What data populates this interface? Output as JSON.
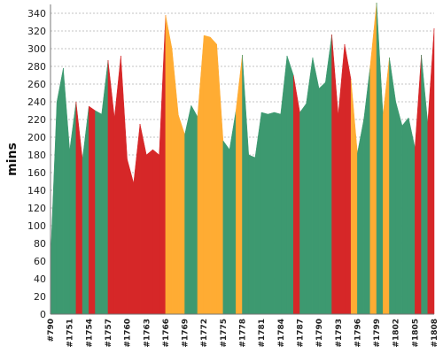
{
  "chart_data": {
    "type": "area",
    "title": "",
    "xlabel": "",
    "ylabel": "mins",
    "ylim": [
      0,
      350
    ],
    "yticks": [
      0,
      20,
      40,
      60,
      80,
      100,
      120,
      140,
      160,
      180,
      200,
      220,
      240,
      260,
      280,
      300,
      320,
      340
    ],
    "grid": true,
    "x_tick_labels": [
      "#790",
      "#1751",
      "#1754",
      "#1757",
      "#1760",
      "#1763",
      "#1766",
      "#1769",
      "#1772",
      "#1775",
      "#1778",
      "#1781",
      "#1784",
      "#1787",
      "#1790",
      "#1793",
      "#1796",
      "#1799",
      "#1802",
      "#1805",
      "#1808"
    ],
    "points": [
      {
        "v": 60,
        "c": "green"
      },
      {
        "v": 240,
        "c": "green"
      },
      {
        "v": 278,
        "c": "green"
      },
      {
        "v": 185,
        "c": "green"
      },
      {
        "v": 240,
        "c": "red"
      },
      {
        "v": 175,
        "c": "green"
      },
      {
        "v": 235,
        "c": "red"
      },
      {
        "v": 230,
        "c": "green"
      },
      {
        "v": 226,
        "c": "green"
      },
      {
        "v": 287,
        "c": "red"
      },
      {
        "v": 222,
        "c": "red"
      },
      {
        "v": 292,
        "c": "red"
      },
      {
        "v": 175,
        "c": "red"
      },
      {
        "v": 148,
        "c": "red"
      },
      {
        "v": 215,
        "c": "red"
      },
      {
        "v": 180,
        "c": "red"
      },
      {
        "v": 186,
        "c": "red"
      },
      {
        "v": 180,
        "c": "red"
      },
      {
        "v": 338,
        "c": "orange"
      },
      {
        "v": 300,
        "c": "orange"
      },
      {
        "v": 225,
        "c": "orange"
      },
      {
        "v": 203,
        "c": "green"
      },
      {
        "v": 236,
        "c": "green"
      },
      {
        "v": 223,
        "c": "orange"
      },
      {
        "v": 315,
        "c": "orange"
      },
      {
        "v": 313,
        "c": "orange"
      },
      {
        "v": 305,
        "c": "orange"
      },
      {
        "v": 196,
        "c": "green"
      },
      {
        "v": 186,
        "c": "green"
      },
      {
        "v": 230,
        "c": "orange"
      },
      {
        "v": 293,
        "c": "green"
      },
      {
        "v": 180,
        "c": "green"
      },
      {
        "v": 177,
        "c": "green"
      },
      {
        "v": 228,
        "c": "green"
      },
      {
        "v": 226,
        "c": "green"
      },
      {
        "v": 228,
        "c": "green"
      },
      {
        "v": 226,
        "c": "green"
      },
      {
        "v": 292,
        "c": "green"
      },
      {
        "v": 270,
        "c": "red"
      },
      {
        "v": 228,
        "c": "green"
      },
      {
        "v": 238,
        "c": "green"
      },
      {
        "v": 290,
        "c": "green"
      },
      {
        "v": 255,
        "c": "green"
      },
      {
        "v": 262,
        "c": "green"
      },
      {
        "v": 316,
        "c": "red"
      },
      {
        "v": 225,
        "c": "red"
      },
      {
        "v": 305,
        "c": "red"
      },
      {
        "v": 265,
        "c": "orange"
      },
      {
        "v": 182,
        "c": "green"
      },
      {
        "v": 220,
        "c": "green"
      },
      {
        "v": 280,
        "c": "orange"
      },
      {
        "v": 352,
        "c": "green"
      },
      {
        "v": 225,
        "c": "orange"
      },
      {
        "v": 290,
        "c": "green"
      },
      {
        "v": 240,
        "c": "green"
      },
      {
        "v": 213,
        "c": "green"
      },
      {
        "v": 222,
        "c": "green"
      },
      {
        "v": 188,
        "c": "red"
      },
      {
        "v": 293,
        "c": "green"
      },
      {
        "v": 216,
        "c": "red"
      },
      {
        "v": 323,
        "c": "green"
      }
    ],
    "colors": {
      "green": "#3d9970",
      "red": "#d62728",
      "orange": "#ffac33"
    }
  }
}
